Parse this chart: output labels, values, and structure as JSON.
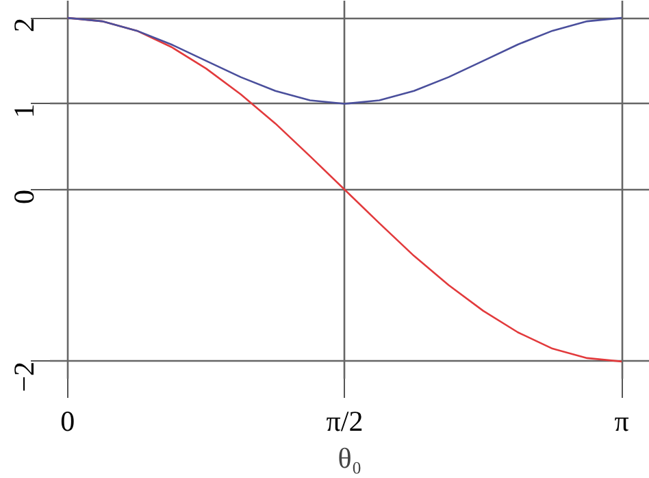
{
  "chart_data": {
    "type": "line",
    "xlabel": "θ₀",
    "x": [
      0,
      0.1963,
      0.3927,
      0.589,
      0.7854,
      0.9817,
      1.1781,
      1.3744,
      1.5708,
      1.7671,
      1.9635,
      2.1598,
      2.3562,
      2.5525,
      2.7489,
      2.9452,
      3.1416
    ],
    "series": [
      {
        "color": "#e23a3c",
        "values": [
          2,
          1.96,
          1.85,
          1.66,
          1.41,
          1.11,
          0.77,
          0.39,
          0,
          -0.39,
          -0.77,
          -1.11,
          -1.41,
          -1.66,
          -1.85,
          -1.96,
          -2
        ]
      },
      {
        "color": "#4a4f9c",
        "values": [
          2,
          1.96,
          1.85,
          1.69,
          1.5,
          1.31,
          1.15,
          1.04,
          1,
          1.04,
          1.15,
          1.31,
          1.5,
          1.69,
          1.85,
          1.96,
          2
        ]
      }
    ],
    "xlim": [
      -0.1,
      3.3
    ],
    "ylim": [
      -2.2,
      2.2
    ],
    "xticks": [
      {
        "value": 0,
        "label": "0"
      },
      {
        "value": 1.5708,
        "label": "π/2"
      },
      {
        "value": 3.1416,
        "label": "π"
      }
    ],
    "yticks": [
      {
        "value": -2,
        "label": "−2"
      },
      0,
      1,
      2
    ],
    "grid": true,
    "marker": "none",
    "line_style": "solid"
  }
}
